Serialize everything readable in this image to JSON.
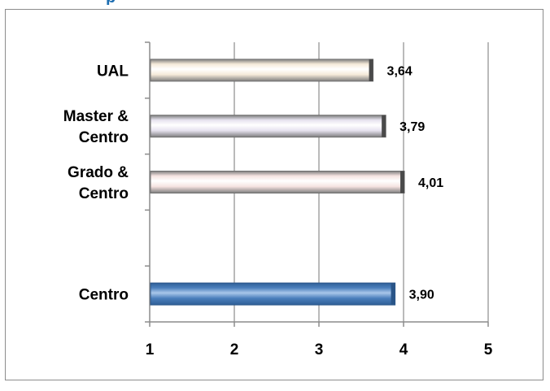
{
  "header": {
    "title_fragment": "p"
  },
  "chart_data": {
    "type": "bar",
    "orientation": "horizontal",
    "categories": [
      "Centro",
      "",
      "Grado & Centro",
      "Master & Centro",
      "UAL"
    ],
    "category_lines": [
      [
        "Centro"
      ],
      [],
      [
        "Grado &",
        "Centro"
      ],
      [
        "Master &",
        "Centro"
      ],
      [
        "UAL"
      ]
    ],
    "values": [
      3.9,
      null,
      4.01,
      3.79,
      3.64
    ],
    "data_labels": [
      "3,90",
      "",
      "4,01",
      "3,79",
      "3,64"
    ],
    "bar_colors": [
      "#4a7ebb",
      null,
      "#f6e4e2",
      "#e6e2ef",
      "#f5ead9"
    ],
    "xlim": [
      1,
      5
    ],
    "x_ticks": [
      1,
      2,
      3,
      4,
      5
    ],
    "x_tick_labels": [
      "1",
      "2",
      "3",
      "4",
      "5"
    ],
    "grid": "vertical",
    "legend": "none",
    "title": "",
    "xlabel": "",
    "ylabel": ""
  }
}
